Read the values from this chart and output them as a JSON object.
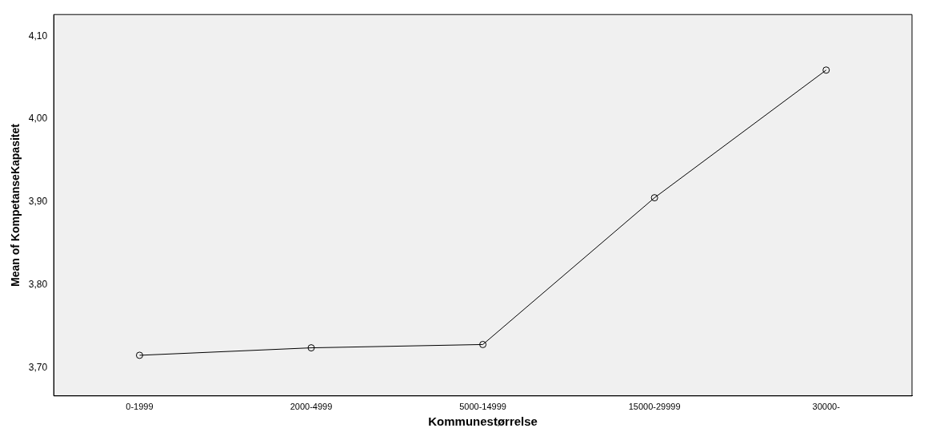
{
  "chart_data": {
    "type": "line",
    "xlabel": "Kommunestørrelse",
    "ylabel": "Mean of KompetanseKapasitet",
    "categories": [
      "0-1999",
      "2000-4999",
      "5000-14999",
      "15000-29999",
      "30000-"
    ],
    "series": [
      {
        "color": "#000000",
        "values": [
          3.715,
          3.724,
          3.728,
          3.905,
          4.059
        ]
      }
    ],
    "ylim": [
      3.666,
      4.126
    ],
    "yticks": [
      {
        "value": 3.7,
        "label": "3,70"
      },
      {
        "value": 3.8,
        "label": "3,80"
      },
      {
        "value": 3.9,
        "label": "3,90"
      },
      {
        "value": 4.0,
        "label": "4,00"
      },
      {
        "value": 4.1,
        "label": "4,10"
      }
    ],
    "grid": false,
    "legend": false,
    "marker": "circle",
    "line_style": "solid"
  }
}
